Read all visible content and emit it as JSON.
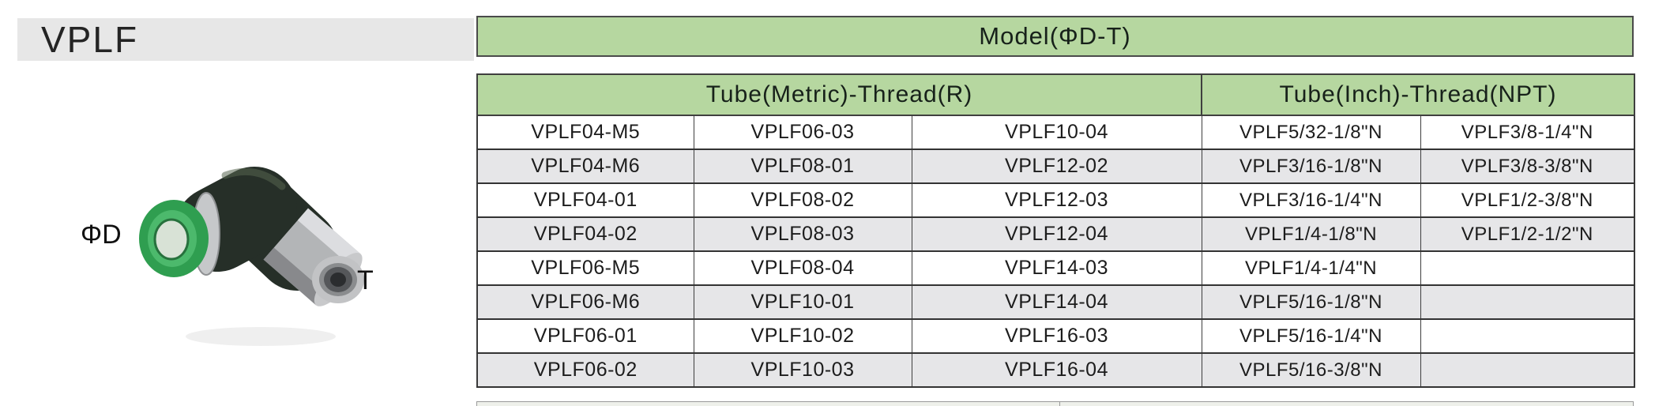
{
  "header": {
    "series": "VPLF"
  },
  "diagram": {
    "tube_label": "ΦD",
    "thread_label": "T"
  },
  "table": {
    "title": "Model(ΦD-T)",
    "group_headers": [
      {
        "label": "Tube(Metric)-Thread(R)",
        "colspan": 3
      },
      {
        "label": "Tube(Inch)-Thread(NPT)",
        "colspan": 2
      }
    ],
    "rows": [
      [
        "VPLF04-M5",
        "VPLF06-03",
        "VPLF10-04",
        "VPLF5/32-1/8\"N",
        "VPLF3/8-1/4\"N"
      ],
      [
        "VPLF04-M6",
        "VPLF08-01",
        "VPLF12-02",
        "VPLF3/16-1/8\"N",
        "VPLF3/8-3/8\"N"
      ],
      [
        "VPLF04-01",
        "VPLF08-02",
        "VPLF12-03",
        "VPLF3/16-1/4\"N",
        "VPLF1/2-3/8\"N"
      ],
      [
        "VPLF04-02",
        "VPLF08-03",
        "VPLF12-04",
        "VPLF1/4-1/8\"N",
        "VPLF1/2-1/2\"N"
      ],
      [
        "VPLF06-M5",
        "VPLF08-04",
        "VPLF14-03",
        "VPLF1/4-1/4\"N",
        ""
      ],
      [
        "VPLF06-M6",
        "VPLF10-01",
        "VPLF14-04",
        "VPLF5/16-1/8\"N",
        ""
      ],
      [
        "VPLF06-01",
        "VPLF10-02",
        "VPLF16-03",
        "VPLF5/16-1/4\"N",
        ""
      ],
      [
        "VPLF06-02",
        "VPLF10-03",
        "VPLF16-04",
        "VPLF5/16-3/8\"N",
        ""
      ]
    ]
  },
  "colors": {
    "header_green": "#b6d7a0",
    "stripe_gray": "#e6e6e8",
    "title_bar_gray": "#e7e7e7",
    "border_dark": "#3a3a3a",
    "collet_green": "#2f9e50",
    "body_dark": "#262f28",
    "nut_silver": "#b3b5b7"
  }
}
